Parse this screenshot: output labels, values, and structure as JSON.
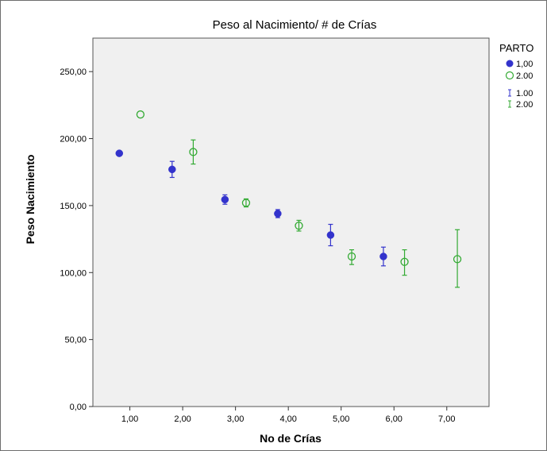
{
  "chart_data": {
    "type": "scatter",
    "title": "Peso al Nacimiento/ # de Crías",
    "xlabel": "No de Crías",
    "ylabel": "Peso Nacimiento",
    "xlim": [
      0.3,
      7.8
    ],
    "ylim": [
      0,
      275
    ],
    "x_ticks": [
      1,
      2,
      3,
      4,
      5,
      6,
      7
    ],
    "x_tick_labels": [
      "1,00",
      "2,00",
      "3,00",
      "4,00",
      "5,00",
      "6,00",
      "7,00"
    ],
    "y_ticks": [
      0,
      50,
      100,
      150,
      200,
      250
    ],
    "y_tick_labels": [
      "0,00",
      "50,00",
      "100,00",
      "150,00",
      "200,00",
      "250,00"
    ],
    "grid": false,
    "legend": {
      "title": "PARTO",
      "placement": "right",
      "marker_labels": [
        "1,00",
        "2.00"
      ],
      "errorbar_labels": [
        "1.00",
        "2.00"
      ]
    },
    "series": [
      {
        "name": "1,00",
        "marker": "filled-circle",
        "color": "#3333cc",
        "points": [
          {
            "x": 0.8,
            "y": 189,
            "err_low": 189,
            "err_high": 189
          },
          {
            "x": 1.8,
            "y": 177,
            "err_low": 171,
            "err_high": 183
          },
          {
            "x": 2.8,
            "y": 154.5,
            "err_low": 151,
            "err_high": 158
          },
          {
            "x": 3.8,
            "y": 144,
            "err_low": 141,
            "err_high": 147
          },
          {
            "x": 4.8,
            "y": 128,
            "err_low": 120,
            "err_high": 136
          },
          {
            "x": 5.8,
            "y": 112,
            "err_low": 105,
            "err_high": 119
          }
        ]
      },
      {
        "name": "2.00",
        "marker": "open-circle",
        "color": "#33aa33",
        "points": [
          {
            "x": 1.2,
            "y": 218,
            "err_low": 218,
            "err_high": 218
          },
          {
            "x": 2.2,
            "y": 190,
            "err_low": 181,
            "err_high": 199
          },
          {
            "x": 3.2,
            "y": 152,
            "err_low": 149,
            "err_high": 155
          },
          {
            "x": 4.2,
            "y": 135,
            "err_low": 131,
            "err_high": 139
          },
          {
            "x": 5.2,
            "y": 112,
            "err_low": 106,
            "err_high": 117
          },
          {
            "x": 6.2,
            "y": 108,
            "err_low": 98,
            "err_high": 117
          },
          {
            "x": 7.2,
            "y": 110,
            "err_low": 89,
            "err_high": 132
          }
        ]
      }
    ]
  }
}
